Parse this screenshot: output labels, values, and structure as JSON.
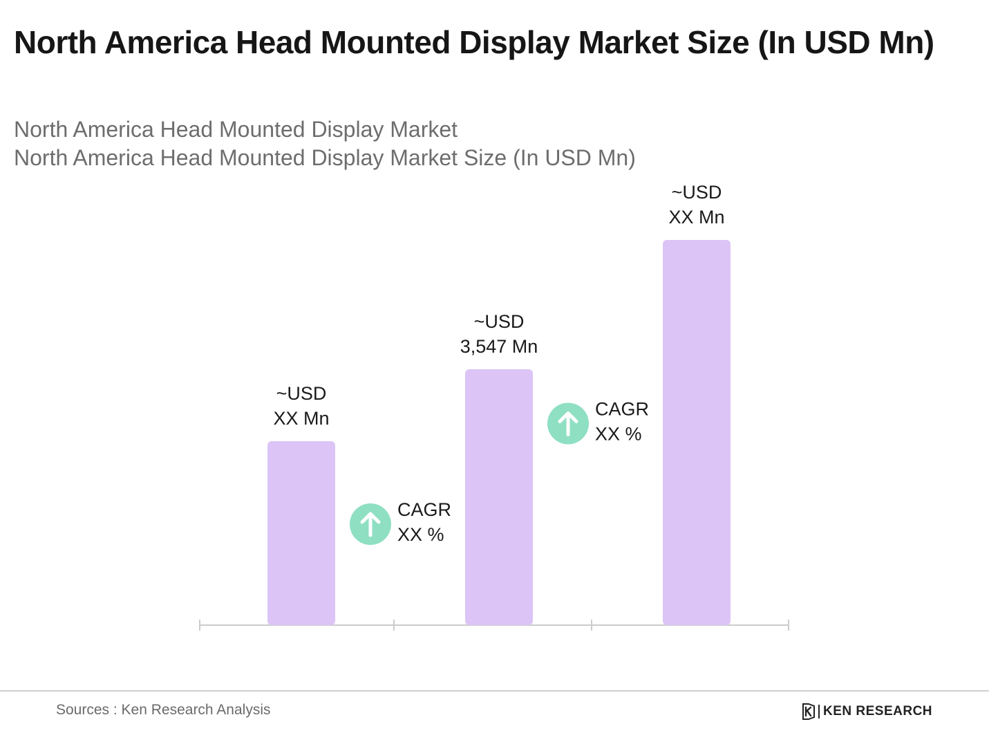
{
  "header": {
    "title": "North America Head Mounted Display Market Size (In USD Mn)"
  },
  "chart_data": {
    "type": "bar",
    "title": "North America Head Mounted Display Market",
    "subtitle": "North America Head Mounted Display Market Size (In USD Mn)",
    "categories": [
      "",
      "",
      ""
    ],
    "values": [
      2550,
      3547,
      5340
    ],
    "value_labels": [
      [
        "~USD",
        "XX Mn"
      ],
      [
        "~USD",
        "3,547 Mn"
      ],
      [
        "~USD",
        "XX Mn"
      ]
    ],
    "cagr_annotations": [
      {
        "label": "CAGR",
        "value": "XX %",
        "between": [
          0,
          1
        ]
      },
      {
        "label": "CAGR",
        "value": "XX %",
        "between": [
          1,
          2
        ]
      }
    ],
    "xlabel": "",
    "ylabel": "",
    "ylim": [
      0,
      5340
    ],
    "grid": false,
    "bar_color": "#dcc4f6",
    "cagr_icon_color": "#8fdfc3",
    "axis_color": "#cccccc"
  },
  "footer": {
    "source": "Sources : Ken Research Analysis",
    "brand": "KEN RESEARCH"
  },
  "icons": {
    "cagr": "arrow-up-icon",
    "logo": "ken-research-logo-icon"
  }
}
